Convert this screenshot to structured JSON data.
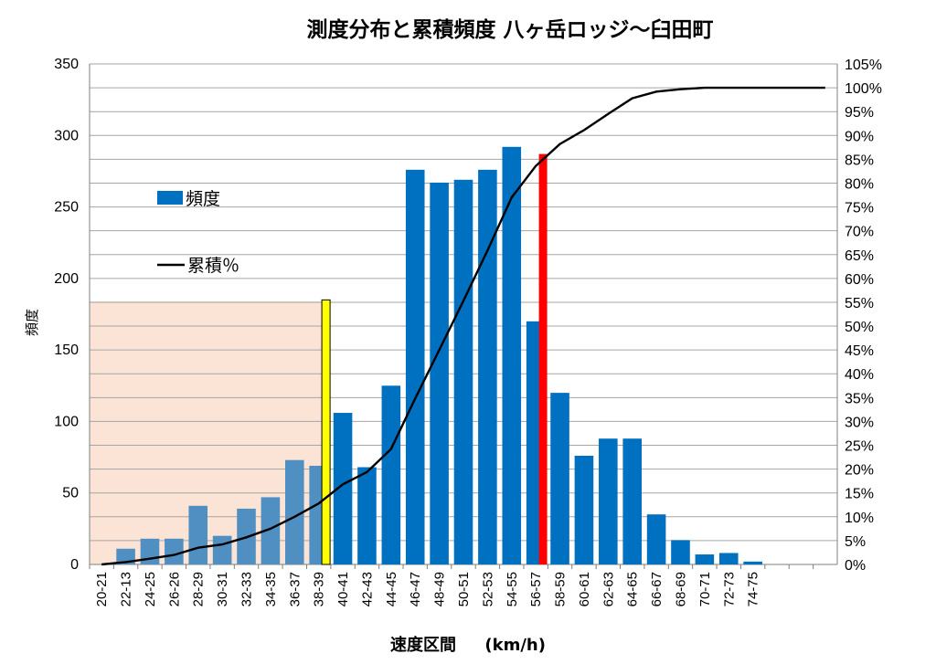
{
  "chart_data": {
    "type": "bar",
    "title": "測度分布と累積頻度  八ヶ岳ロッジ～臼田町",
    "xlabel": "速度区間     (km/h)",
    "ylabel": "頻度",
    "ylim": [
      0,
      350
    ],
    "yticks": [
      0,
      50,
      100,
      150,
      200,
      250,
      300,
      350
    ],
    "y2lim": [
      0,
      105
    ],
    "y2ticks": [
      "0%",
      "5%",
      "10%",
      "15%",
      "20%",
      "25%",
      "30%",
      "35%",
      "40%",
      "45%",
      "50%",
      "55%",
      "60%",
      "65%",
      "70%",
      "75%",
      "80%",
      "85%",
      "90%",
      "95%",
      "100%",
      "105%"
    ],
    "categories": [
      "20-21",
      "22-13",
      "24-25",
      "26-26",
      "28-29",
      "30-31",
      "32-33",
      "34-35",
      "36-37",
      "38-39",
      "40-41",
      "42-43",
      "44-45",
      "46-47",
      "48-49",
      "50-51",
      "52-53",
      "54-55",
      "56-57",
      "58-59",
      "60-61",
      "62-63",
      "64-65",
      "66-67",
      "68-69",
      "70-71",
      "72-73",
      "74-75",
      "",
      "",
      ""
    ],
    "series": [
      {
        "name": "頻度",
        "type": "bar",
        "color": "#0070c0",
        "shaded_color": "#4f8fc2",
        "values": [
          0,
          11,
          18,
          18,
          41,
          20,
          39,
          47,
          73,
          69,
          106,
          68,
          125,
          276,
          267,
          269,
          276,
          292,
          170,
          120,
          76,
          88,
          88,
          35,
          17,
          7,
          8,
          2,
          0,
          0,
          0
        ]
      },
      {
        "name": "累積％",
        "type": "line",
        "axis": "right",
        "color": "#000000",
        "values": [
          0,
          0.5,
          1.2,
          2.0,
          3.5,
          4.2,
          5.7,
          7.5,
          10.0,
          12.8,
          16.8,
          19.4,
          24.2,
          34.8,
          45.0,
          55.3,
          65.9,
          77.0,
          83.6,
          88.2,
          91.1,
          94.5,
          97.8,
          99.2,
          99.7,
          100.0,
          100.0,
          100.0,
          100.0,
          100.0,
          100.0
        ]
      }
    ],
    "markers": [
      {
        "name": "yellow-marker",
        "color": "#ffff00",
        "position": 9.8,
        "value": 185
      },
      {
        "name": "red-marker",
        "color": "#ff0000",
        "position": 18.8,
        "value": 287
      }
    ],
    "shaded_region": {
      "color": "#fbe4d5",
      "category_end": 9.8,
      "value_top": 184
    },
    "legend": {
      "position": "left",
      "items": [
        "頻度",
        "累積％"
      ]
    }
  }
}
